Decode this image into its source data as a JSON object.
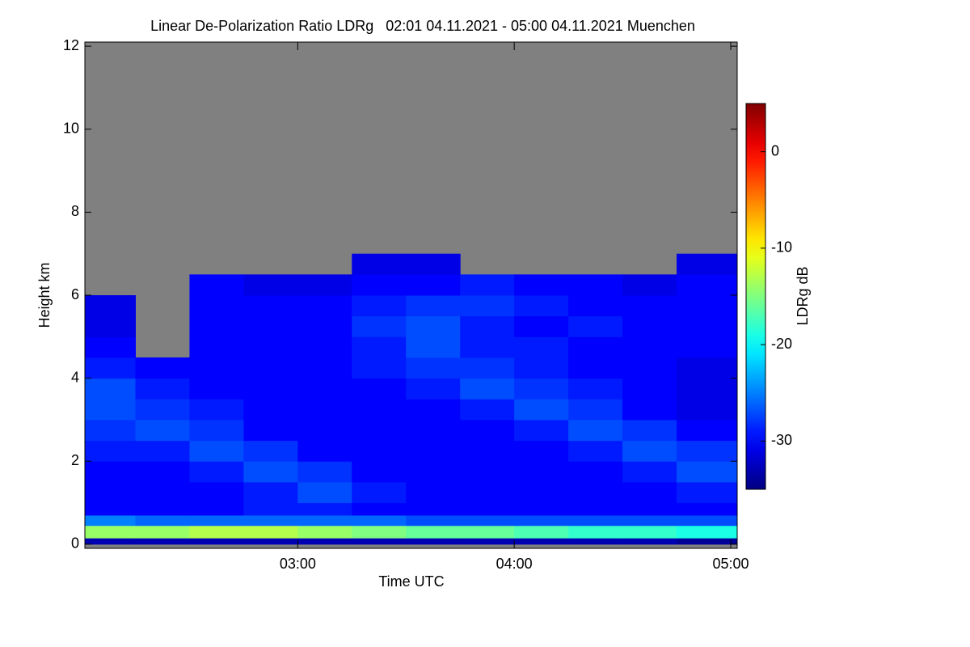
{
  "chart_data": {
    "type": "heatmap",
    "title": "Linear De-Polarization Ratio LDRg   02:01 04.11.2021 - 05:00 04.11.2021 Muenchen",
    "x_label": "Time UTC",
    "y_label": "Height km",
    "colorbar_label": "LDRg dB",
    "colormap": "jet",
    "nodata_color": "#808080",
    "xlim": [
      2.0167,
      5.03
    ],
    "xticks": [
      {
        "value": 3,
        "label": "03:00"
      },
      {
        "value": 4,
        "label": "04:00"
      },
      {
        "value": 5,
        "label": "05:00"
      }
    ],
    "ylim": [
      -0.1,
      12.1
    ],
    "yticks": [
      0,
      2,
      4,
      6,
      8,
      10,
      12
    ],
    "clim": [
      -35,
      5
    ],
    "cticks": [
      -30,
      -20,
      -10,
      0
    ],
    "xbins": [
      2.0167,
      2.25,
      2.5,
      2.75,
      3,
      3.25,
      3.5,
      3.75,
      4,
      4.25,
      4.5,
      4.75,
      5.03
    ],
    "ybins": [
      0,
      0.15,
      0.45,
      0.7,
      1,
      1.5,
      2,
      2.5,
      3,
      3.5,
      4,
      4.5,
      5,
      5.5,
      6,
      6.5,
      7
    ],
    "z": [
      [
        -33,
        -33,
        -33,
        -33,
        -33,
        -33,
        -33,
        -33,
        -33,
        -33,
        -33,
        -34
      ],
      [
        -14,
        -14,
        -13,
        -13,
        -14,
        -15,
        -16,
        -16,
        -17,
        -18,
        -18,
        -19
      ],
      [
        -25,
        -26,
        -26,
        -26,
        -26,
        -26,
        -27,
        -27,
        -27,
        -27,
        -27,
        -27
      ],
      [
        -30,
        -30,
        -30,
        -29,
        -29,
        -30,
        -30,
        -30,
        -30,
        -30,
        -30,
        -30
      ],
      [
        -30,
        -30,
        -30,
        -29,
        -27,
        -29,
        -30,
        -30,
        -30,
        -30,
        -30,
        -29
      ],
      [
        -30,
        -30,
        -29,
        -27,
        -28,
        -30,
        -30,
        -30,
        -30,
        -30,
        -29,
        -27
      ],
      [
        -29,
        -29,
        -27,
        -28,
        -30,
        -30,
        -30,
        -30,
        -30,
        -29,
        -27,
        -28
      ],
      [
        -28,
        -27,
        -28,
        -30,
        -30,
        -30,
        -30,
        -30,
        -29,
        -27,
        -28,
        -30
      ],
      [
        -27,
        -28,
        -29,
        -30,
        -30,
        -30,
        -30,
        -29,
        -27,
        -28,
        -30,
        -31
      ],
      [
        -27,
        -29,
        -30,
        -30,
        -30,
        -30,
        -29,
        -27,
        -28,
        -29,
        -30,
        -31
      ],
      [
        -29,
        -30,
        -30,
        -30,
        -30,
        -29,
        -28,
        -28,
        -29,
        -30,
        -30,
        -31
      ],
      [
        -30,
        null,
        -30,
        -30,
        -30,
        -29,
        -27,
        -29,
        -29,
        -30,
        -30,
        -30
      ],
      [
        -31,
        null,
        -30,
        -30,
        -30,
        -28,
        -27,
        -29,
        -30,
        -29,
        -30,
        -30
      ],
      [
        -31,
        null,
        -30,
        -30,
        -30,
        -29,
        -28,
        -28,
        -29,
        -30,
        -30,
        -30
      ],
      [
        null,
        null,
        -30,
        -31,
        -31,
        -30,
        -30,
        -29,
        -30,
        -30,
        -31,
        -30
      ],
      [
        null,
        null,
        null,
        null,
        null,
        -31,
        -31,
        null,
        null,
        null,
        null,
        -31
      ]
    ]
  }
}
